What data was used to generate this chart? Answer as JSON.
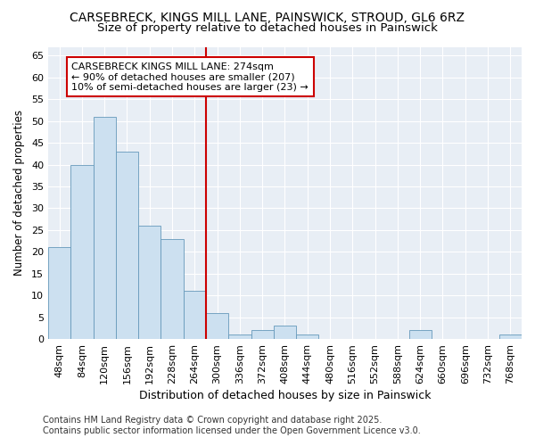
{
  "title_line1": "CARSEBRECK, KINGS MILL LANE, PAINSWICK, STROUD, GL6 6RZ",
  "title_line2": "Size of property relative to detached houses in Painswick",
  "xlabel": "Distribution of detached houses by size in Painswick",
  "ylabel": "Number of detached properties",
  "categories": [
    "48sqm",
    "84sqm",
    "120sqm",
    "156sqm",
    "192sqm",
    "228sqm",
    "264sqm",
    "300sqm",
    "336sqm",
    "372sqm",
    "408sqm",
    "444sqm",
    "480sqm",
    "516sqm",
    "552sqm",
    "588sqm",
    "624sqm",
    "660sqm",
    "696sqm",
    "732sqm",
    "768sqm"
  ],
  "values": [
    21,
    40,
    51,
    43,
    26,
    23,
    11,
    6,
    1,
    2,
    3,
    1,
    0,
    0,
    0,
    0,
    2,
    0,
    0,
    0,
    1
  ],
  "bar_color": "#cce0f0",
  "bar_edge_color": "#6699bb",
  "vline_color": "#cc0000",
  "annotation_text": "CARSEBRECK KINGS MILL LANE: 274sqm\n← 90% of detached houses are smaller (207)\n10% of semi-detached houses are larger (23) →",
  "annotation_box_color": "white",
  "annotation_box_edge_color": "#cc0000",
  "ylim": [
    0,
    67
  ],
  "yticks": [
    0,
    5,
    10,
    15,
    20,
    25,
    30,
    35,
    40,
    45,
    50,
    55,
    60,
    65
  ],
  "bg_color": "#e8eef5",
  "footer_text": "Contains HM Land Registry data © Crown copyright and database right 2025.\nContains public sector information licensed under the Open Government Licence v3.0.",
  "title_fontsize": 10,
  "subtitle_fontsize": 9.5,
  "xlabel_fontsize": 9,
  "ylabel_fontsize": 8.5,
  "tick_fontsize": 8,
  "annotation_fontsize": 8,
  "footer_fontsize": 7
}
